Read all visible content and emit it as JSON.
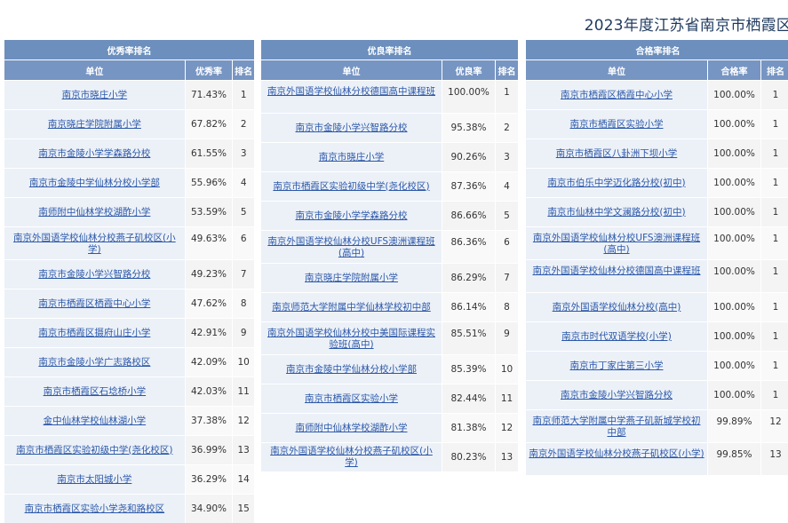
{
  "page": {
    "title": "2023年度江苏省南京市栖霞区"
  },
  "tables": [
    {
      "title": "优秀率排名",
      "headers": [
        "单位",
        "优秀率",
        "排名"
      ],
      "rows": [
        [
          "南京市晓庄小学",
          "71.43%",
          "1"
        ],
        [
          "南京晓庄学院附属小学",
          "67.82%",
          "2"
        ],
        [
          "南京市金陵小学学森路分校",
          "61.55%",
          "3"
        ],
        [
          "南京市金陵中学仙林分校小学部",
          "55.96%",
          "4"
        ],
        [
          "南师附中仙林学校湖酢小学",
          "53.59%",
          "5"
        ],
        [
          "南京外国语学校仙林分校燕子矶校区(小学)",
          "49.63%",
          "6"
        ],
        [
          "南京市金陵小学兴智路分校",
          "49.23%",
          "7"
        ],
        [
          "南京市栖霞区栖霞中心小学",
          "47.62%",
          "8"
        ],
        [
          "南京市栖霞区摄府山庄小学",
          "42.91%",
          "9"
        ],
        [
          "南京市金陵小学广志路校区",
          "42.09%",
          "10"
        ],
        [
          "南京市栖霞区石埝桥小学",
          "42.03%",
          "11"
        ],
        [
          "金中仙林学校仙林湖小学",
          "37.38%",
          "12"
        ],
        [
          "南京市栖霞区实验初级中学(尧化校区)",
          "36.99%",
          "13"
        ],
        [
          "南京市太阳城小学",
          "36.29%",
          "14"
        ],
        [
          "南京市栖霞区实验小学尧和路校区",
          "34.90%",
          "15"
        ]
      ]
    },
    {
      "title": "优良率排名",
      "headers": [
        "单位",
        "优良率",
        "排名"
      ],
      "rows": [
        [
          "南京外国语学校仙林分校德国高中课程班",
          "100.00%",
          "1"
        ],
        [
          "南京市金陵小学兴智路分校",
          "95.38%",
          "2"
        ],
        [
          "南京市晓庄小学",
          "90.26%",
          "3"
        ],
        [
          "南京市栖霞区实验初级中学(尧化校区)",
          "87.36%",
          "4"
        ],
        [
          "南京市金陵小学学森路分校",
          "86.66%",
          "5"
        ],
        [
          "南京外国语学校仙林分校UFS澳洲课程班(高中)",
          "86.36%",
          "6"
        ],
        [
          "南京晓庄学院附属小学",
          "86.29%",
          "7"
        ],
        [
          "南京师范大学附属中学仙林学校初中部",
          "86.14%",
          "8"
        ],
        [
          "南京外国语学校仙林分校中美国际课程实验班(高中)",
          "85.51%",
          "9"
        ],
        [
          "南京市金陵中学仙林分校小学部",
          "85.39%",
          "10"
        ],
        [
          "南京市栖霞区实验小学",
          "82.44%",
          "11"
        ],
        [
          "南师附中仙林学校湖酢小学",
          "81.38%",
          "12"
        ],
        [
          "南京外国语学校仙林分校燕子矶校区(小学)",
          "80.23%",
          "13"
        ]
      ]
    },
    {
      "title": "合格率排名",
      "headers": [
        "单位",
        "合格率",
        "排名"
      ],
      "rows": [
        [
          "南京市栖霞区栖霞中心小学",
          "100.00%",
          "1"
        ],
        [
          "南京市栖霞区实验小学",
          "100.00%",
          "1"
        ],
        [
          "南京市栖霞区八卦洲下坝小学",
          "100.00%",
          "1"
        ],
        [
          "南京市伯乐中学迈化路分校(初中)",
          "100.00%",
          "1"
        ],
        [
          "南京市仙林中学文澜路分校(初中)",
          "100.00%",
          "1"
        ],
        [
          "南京外国语学校仙林分校UFS澳洲课程班(高中)",
          "100.00%",
          "1"
        ],
        [
          "南京外国语学校仙林分校德国高中课程班",
          "100.00%",
          "1"
        ],
        [
          "南京外国语学校仙林分校(高中)",
          "100.00%",
          "1"
        ],
        [
          "南京市时代双语学校(小学)",
          "100.00%",
          "1"
        ],
        [
          "南京市丁家庄第三小学",
          "100.00%",
          "1"
        ],
        [
          "南京市金陵小学兴智路分校",
          "100.00%",
          "1"
        ],
        [
          "南京师范大学附属中学燕子矶新城学校初中部",
          "99.89%",
          "12"
        ],
        [
          "南京外国语学校仙林分校燕子矶校区(小学)",
          "99.85%",
          "13"
        ]
      ]
    }
  ],
  "colors": {
    "header": "#6c8fbd",
    "link": "#2c58a8",
    "title": "#1f3a5f"
  }
}
